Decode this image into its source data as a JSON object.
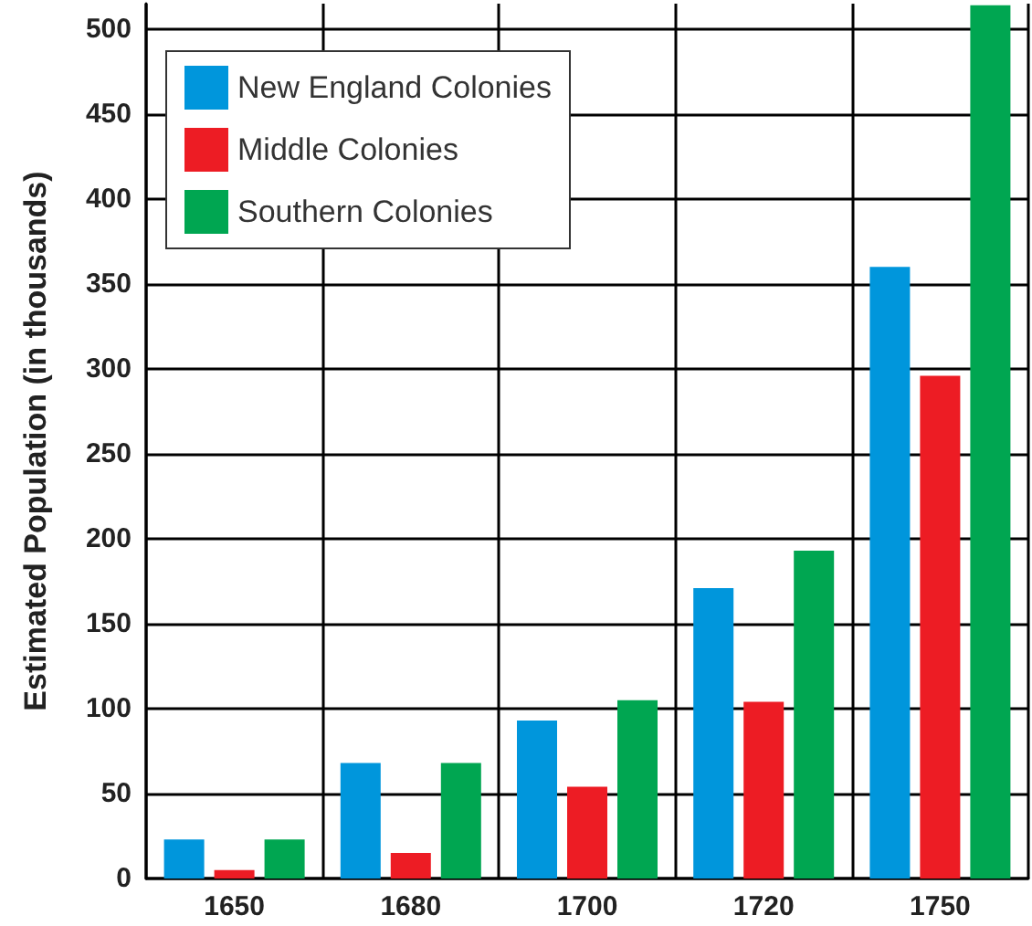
{
  "chart_data": {
    "type": "bar",
    "ylabel": "Estimated Population (in thousands)",
    "categories": [
      "1650",
      "1680",
      "1700",
      "1720",
      "1750"
    ],
    "series": [
      {
        "name": "New England Colonies",
        "color": "#0096dc",
        "values": [
          23,
          68,
          93,
          171,
          360
        ]
      },
      {
        "name": "Middle Colonies",
        "color": "#ed1c24",
        "values": [
          5,
          15,
          54,
          104,
          296
        ]
      },
      {
        "name": "Southern Colonies",
        "color": "#00a651",
        "values": [
          23,
          68,
          105,
          193,
          514
        ]
      }
    ],
    "ylim": [
      0,
      515
    ],
    "yticks": [
      0,
      50,
      100,
      150,
      200,
      250,
      300,
      350,
      400,
      450,
      500
    ],
    "grid": true,
    "legend": "top left"
  }
}
